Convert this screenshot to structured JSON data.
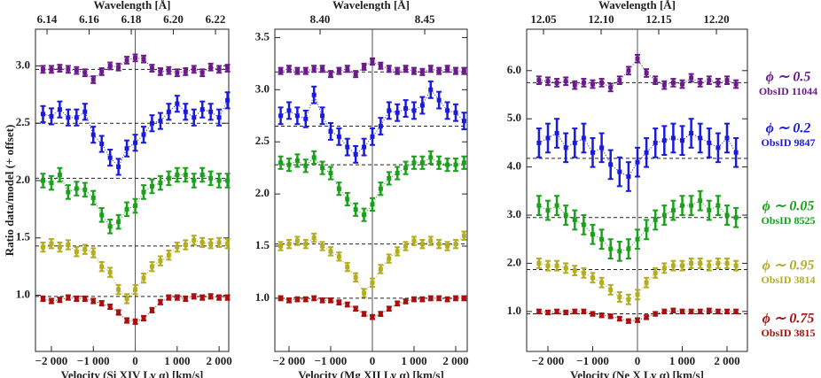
{
  "chart_data": [
    {
      "type": "errorbar",
      "ylabel": "Ratio data/model  (+ offset)",
      "xlabel": "Velocity (Si XIV Ly α) [km/s]",
      "x2label": "Wavelength [Å]",
      "x": [
        -2200,
        -2000,
        -1800,
        -1600,
        -1400,
        -1200,
        -1000,
        -800,
        -600,
        -400,
        -200,
        0,
        200,
        400,
        600,
        800,
        1000,
        1200,
        1400,
        1600,
        1800,
        2000,
        2200
      ],
      "xlim": [
        -2380,
        2230
      ],
      "xticks": [
        {
          "value": -2000,
          "label": "−2 000"
        },
        {
          "value": -1000,
          "label": "−1 000"
        },
        0,
        {
          "value": 1000,
          "label": "1 000"
        },
        {
          "value": 2000,
          "label": "2 000"
        }
      ],
      "x2lim": [
        6.1345,
        6.2263
      ],
      "x2ticks": [
        6.14,
        6.16,
        6.18,
        {
          "value": 6.2,
          "label": "6.20"
        },
        6.22
      ],
      "ylim": [
        0.51,
        3.32
      ],
      "yticks": [
        {
          "value": 1,
          "label": "1.0"
        },
        1.5,
        {
          "value": 2,
          "label": "2.0"
        },
        2.5,
        {
          "value": 3,
          "label": "3.0"
        }
      ],
      "vline": 0,
      "series": [
        {
          "color": "#6b1a8c",
          "level": 2.97,
          "error": 0.03,
          "values": [
            2.97,
            2.97,
            2.98,
            2.97,
            2.96,
            2.94,
            2.88,
            2.95,
            3.0,
            2.99,
            3.05,
            3.07,
            3.06,
            2.98,
            2.95,
            2.96,
            2.94,
            2.95,
            2.97,
            2.94,
            2.99,
            2.97,
            2.98
          ]
        },
        {
          "color": "#1a1adb",
          "level": 2.5,
          "error": 0.07,
          "values": [
            2.58,
            2.56,
            2.62,
            2.55,
            2.55,
            2.6,
            2.4,
            2.32,
            2.2,
            2.12,
            2.28,
            2.33,
            2.4,
            2.5,
            2.52,
            2.6,
            2.67,
            2.6,
            2.55,
            2.62,
            2.6,
            2.55,
            2.7
          ]
        },
        {
          "color": "#1aa01a",
          "level": 2.02,
          "error": 0.06,
          "values": [
            2.0,
            1.98,
            2.05,
            1.9,
            1.93,
            1.92,
            1.85,
            1.7,
            1.6,
            1.64,
            1.75,
            1.78,
            1.9,
            1.95,
            1.98,
            2.02,
            2.05,
            2.05,
            2.0,
            2.05,
            2.02,
            2.0,
            2.0
          ]
        },
        {
          "color": "#b3ad22",
          "level": 1.43,
          "error": 0.04,
          "values": [
            1.42,
            1.45,
            1.42,
            1.44,
            1.38,
            1.4,
            1.37,
            1.25,
            1.2,
            1.05,
            0.97,
            1.05,
            1.15,
            1.25,
            1.3,
            1.35,
            1.42,
            1.44,
            1.48,
            1.46,
            1.45,
            1.46,
            1.45
          ]
        },
        {
          "color": "#a81010",
          "level": 0.99,
          "error": 0.02,
          "values": [
            0.97,
            0.95,
            0.96,
            0.98,
            0.97,
            0.97,
            0.95,
            0.93,
            0.9,
            0.85,
            0.78,
            0.77,
            0.8,
            0.87,
            0.94,
            0.98,
            0.98,
            0.97,
            0.99,
            0.98,
            0.99,
            0.98,
            0.98
          ]
        }
      ]
    },
    {
      "type": "errorbar",
      "xlabel": "Velocity (Mg XII Ly α) [km/s]",
      "x2label": "Wavelength [Å]",
      "x": [
        -2200,
        -2000,
        -1800,
        -1600,
        -1400,
        -1200,
        -1000,
        -800,
        -600,
        -400,
        -200,
        0,
        200,
        400,
        600,
        800,
        1000,
        1200,
        1400,
        1600,
        1800,
        2000,
        2200
      ],
      "xlim": [
        -2340,
        2277
      ],
      "xticks": [
        {
          "value": -2000,
          "label": "−2 000"
        },
        {
          "value": -1000,
          "label": "−1 000"
        },
        0,
        {
          "value": 1000,
          "label": "1 000"
        },
        {
          "value": 2000,
          "label": "2 000"
        }
      ],
      "x2lim": [
        8.3784,
        8.4703
      ],
      "x2ticks": [
        {
          "value": 8.4,
          "label": "8.40"
        },
        8.45
      ],
      "ylim": [
        0.49,
        3.58
      ],
      "yticks": [
        {
          "value": 1,
          "label": "1.0"
        },
        1.5,
        {
          "value": 2,
          "label": "2.0"
        },
        2.5,
        {
          "value": 3,
          "label": "3.0"
        },
        3.5
      ],
      "vline": 0,
      "series": [
        {
          "color": "#6b1a8c",
          "level": 3.17,
          "error": 0.03,
          "values": [
            3.18,
            3.2,
            3.18,
            3.18,
            3.2,
            3.2,
            3.15,
            3.18,
            3.2,
            3.15,
            3.22,
            3.27,
            3.23,
            3.2,
            3.18,
            3.2,
            3.18,
            3.17,
            3.2,
            3.18,
            3.2,
            3.18,
            3.18
          ]
        },
        {
          "color": "#1a1adb",
          "level": 2.65,
          "error": 0.08,
          "values": [
            2.75,
            2.8,
            2.75,
            2.72,
            2.95,
            2.75,
            2.6,
            2.55,
            2.45,
            2.38,
            2.45,
            2.55,
            2.65,
            2.8,
            2.78,
            2.82,
            2.8,
            2.85,
            3.0,
            2.9,
            2.8,
            2.78,
            2.7
          ]
        },
        {
          "color": "#1aa01a",
          "level": 2.28,
          "error": 0.06,
          "values": [
            2.3,
            2.28,
            2.32,
            2.27,
            2.35,
            2.25,
            2.2,
            2.05,
            1.95,
            1.85,
            1.8,
            1.9,
            2.05,
            2.15,
            2.2,
            2.25,
            2.3,
            2.3,
            2.35,
            2.3,
            2.28,
            2.28,
            2.3
          ]
        },
        {
          "color": "#b3ad22",
          "level": 1.52,
          "error": 0.04,
          "values": [
            1.5,
            1.52,
            1.55,
            1.52,
            1.58,
            1.5,
            1.45,
            1.4,
            1.3,
            1.2,
            1.05,
            1.15,
            1.28,
            1.38,
            1.45,
            1.5,
            1.55,
            1.52,
            1.55,
            1.52,
            1.5,
            1.52,
            1.6
          ]
        },
        {
          "color": "#a81010",
          "level": 1.0,
          "error": 0.02,
          "values": [
            1.0,
            0.98,
            0.99,
            0.99,
            1.0,
            0.98,
            0.98,
            0.96,
            0.94,
            0.9,
            0.85,
            0.82,
            0.85,
            0.9,
            0.95,
            0.97,
            0.99,
            0.99,
            1.0,
            1.0,
            0.99,
            1.0,
            1.0
          ]
        }
      ]
    },
    {
      "type": "errorbar",
      "xlabel": "Velocity (Ne X Ly α) [km/s]",
      "x2label": "Wavelength [Å]",
      "x": [
        -2200,
        -2000,
        -1800,
        -1600,
        -1400,
        -1200,
        -1000,
        -800,
        -600,
        -400,
        -200,
        0,
        200,
        400,
        600,
        800,
        1000,
        1200,
        1400,
        1600,
        1800,
        2000,
        2200
      ],
      "xlim": [
        -2475,
        2455
      ],
      "xticks": [
        {
          "value": -2000,
          "label": "−2 000"
        },
        {
          "value": -1000,
          "label": "−1 000"
        },
        0,
        {
          "value": 1000,
          "label": "1 000"
        },
        {
          "value": 2000,
          "label": "2 000"
        }
      ],
      "x2lim": [
        12.0354,
        12.2269
      ],
      "x2ticks": [
        12.05,
        {
          "value": 12.1,
          "label": "12.10"
        },
        12.15,
        {
          "value": 12.2,
          "label": "12.20"
        }
      ],
      "ylim": [
        0.17,
        6.86
      ],
      "yticks": [
        {
          "value": 1,
          "label": "1.0"
        },
        {
          "value": 2,
          "label": "2.0"
        },
        {
          "value": 3,
          "label": "3.0"
        },
        {
          "value": 4,
          "label": "4.0"
        },
        {
          "value": 5,
          "label": "5.0"
        },
        {
          "value": 6,
          "label": "6.0"
        }
      ],
      "vline": 0,
      "series": [
        {
          "name": "ϕ ∼ 0.5",
          "obsid": "ObsID 11044",
          "color": "#6b1a8c",
          "level": 5.75,
          "error": 0.08,
          "values": [
            5.8,
            5.78,
            5.75,
            5.78,
            5.7,
            5.75,
            5.72,
            5.75,
            5.65,
            5.8,
            6.0,
            6.25,
            5.95,
            5.8,
            5.7,
            5.75,
            5.72,
            5.85,
            5.75,
            5.8,
            5.75,
            5.8,
            5.72
          ]
        },
        {
          "name": "ϕ ∼ 0.2",
          "obsid": "ObsID 9847",
          "color": "#1a1adb",
          "level": 4.18,
          "error": 0.3,
          "values": [
            4.5,
            4.6,
            4.7,
            4.4,
            4.5,
            4.6,
            4.3,
            4.4,
            4.05,
            3.9,
            3.8,
            4.1,
            4.3,
            4.5,
            4.55,
            4.6,
            4.55,
            4.7,
            4.6,
            4.5,
            4.4,
            4.6,
            4.3
          ]
        },
        {
          "name": "ϕ ∼ 0.05",
          "obsid": "ObsID 8525",
          "color": "#1aa01a",
          "level": 2.95,
          "error": 0.2,
          "values": [
            3.2,
            3.1,
            3.2,
            3.0,
            2.9,
            2.8,
            2.6,
            2.5,
            2.3,
            2.25,
            2.3,
            2.5,
            2.7,
            2.9,
            3.0,
            3.1,
            3.2,
            3.2,
            3.3,
            3.1,
            3.2,
            3.0,
            2.95
          ]
        },
        {
          "name": "ϕ ∼ 0.95",
          "obsid": "ObsID 3814",
          "color": "#b3ad22",
          "level": 1.87,
          "error": 0.1,
          "values": [
            2.0,
            1.95,
            1.95,
            1.9,
            1.85,
            1.8,
            1.7,
            1.6,
            1.45,
            1.3,
            1.25,
            1.35,
            1.6,
            1.8,
            1.9,
            1.95,
            1.95,
            2.0,
            2.0,
            1.95,
            2.0,
            2.0,
            1.95
          ]
        },
        {
          "name": "ϕ ∼ 0.75",
          "obsid": "ObsID 3815",
          "color": "#a81010",
          "level": 0.95,
          "error": 0.04,
          "values": [
            1.0,
            0.98,
            1.0,
            0.98,
            1.0,
            1.0,
            0.95,
            0.92,
            0.9,
            0.85,
            0.8,
            0.82,
            0.88,
            0.95,
            1.0,
            1.02,
            1.0,
            1.0,
            1.0,
            1.02,
            1.0,
            1.0,
            1.0
          ]
        }
      ]
    }
  ]
}
